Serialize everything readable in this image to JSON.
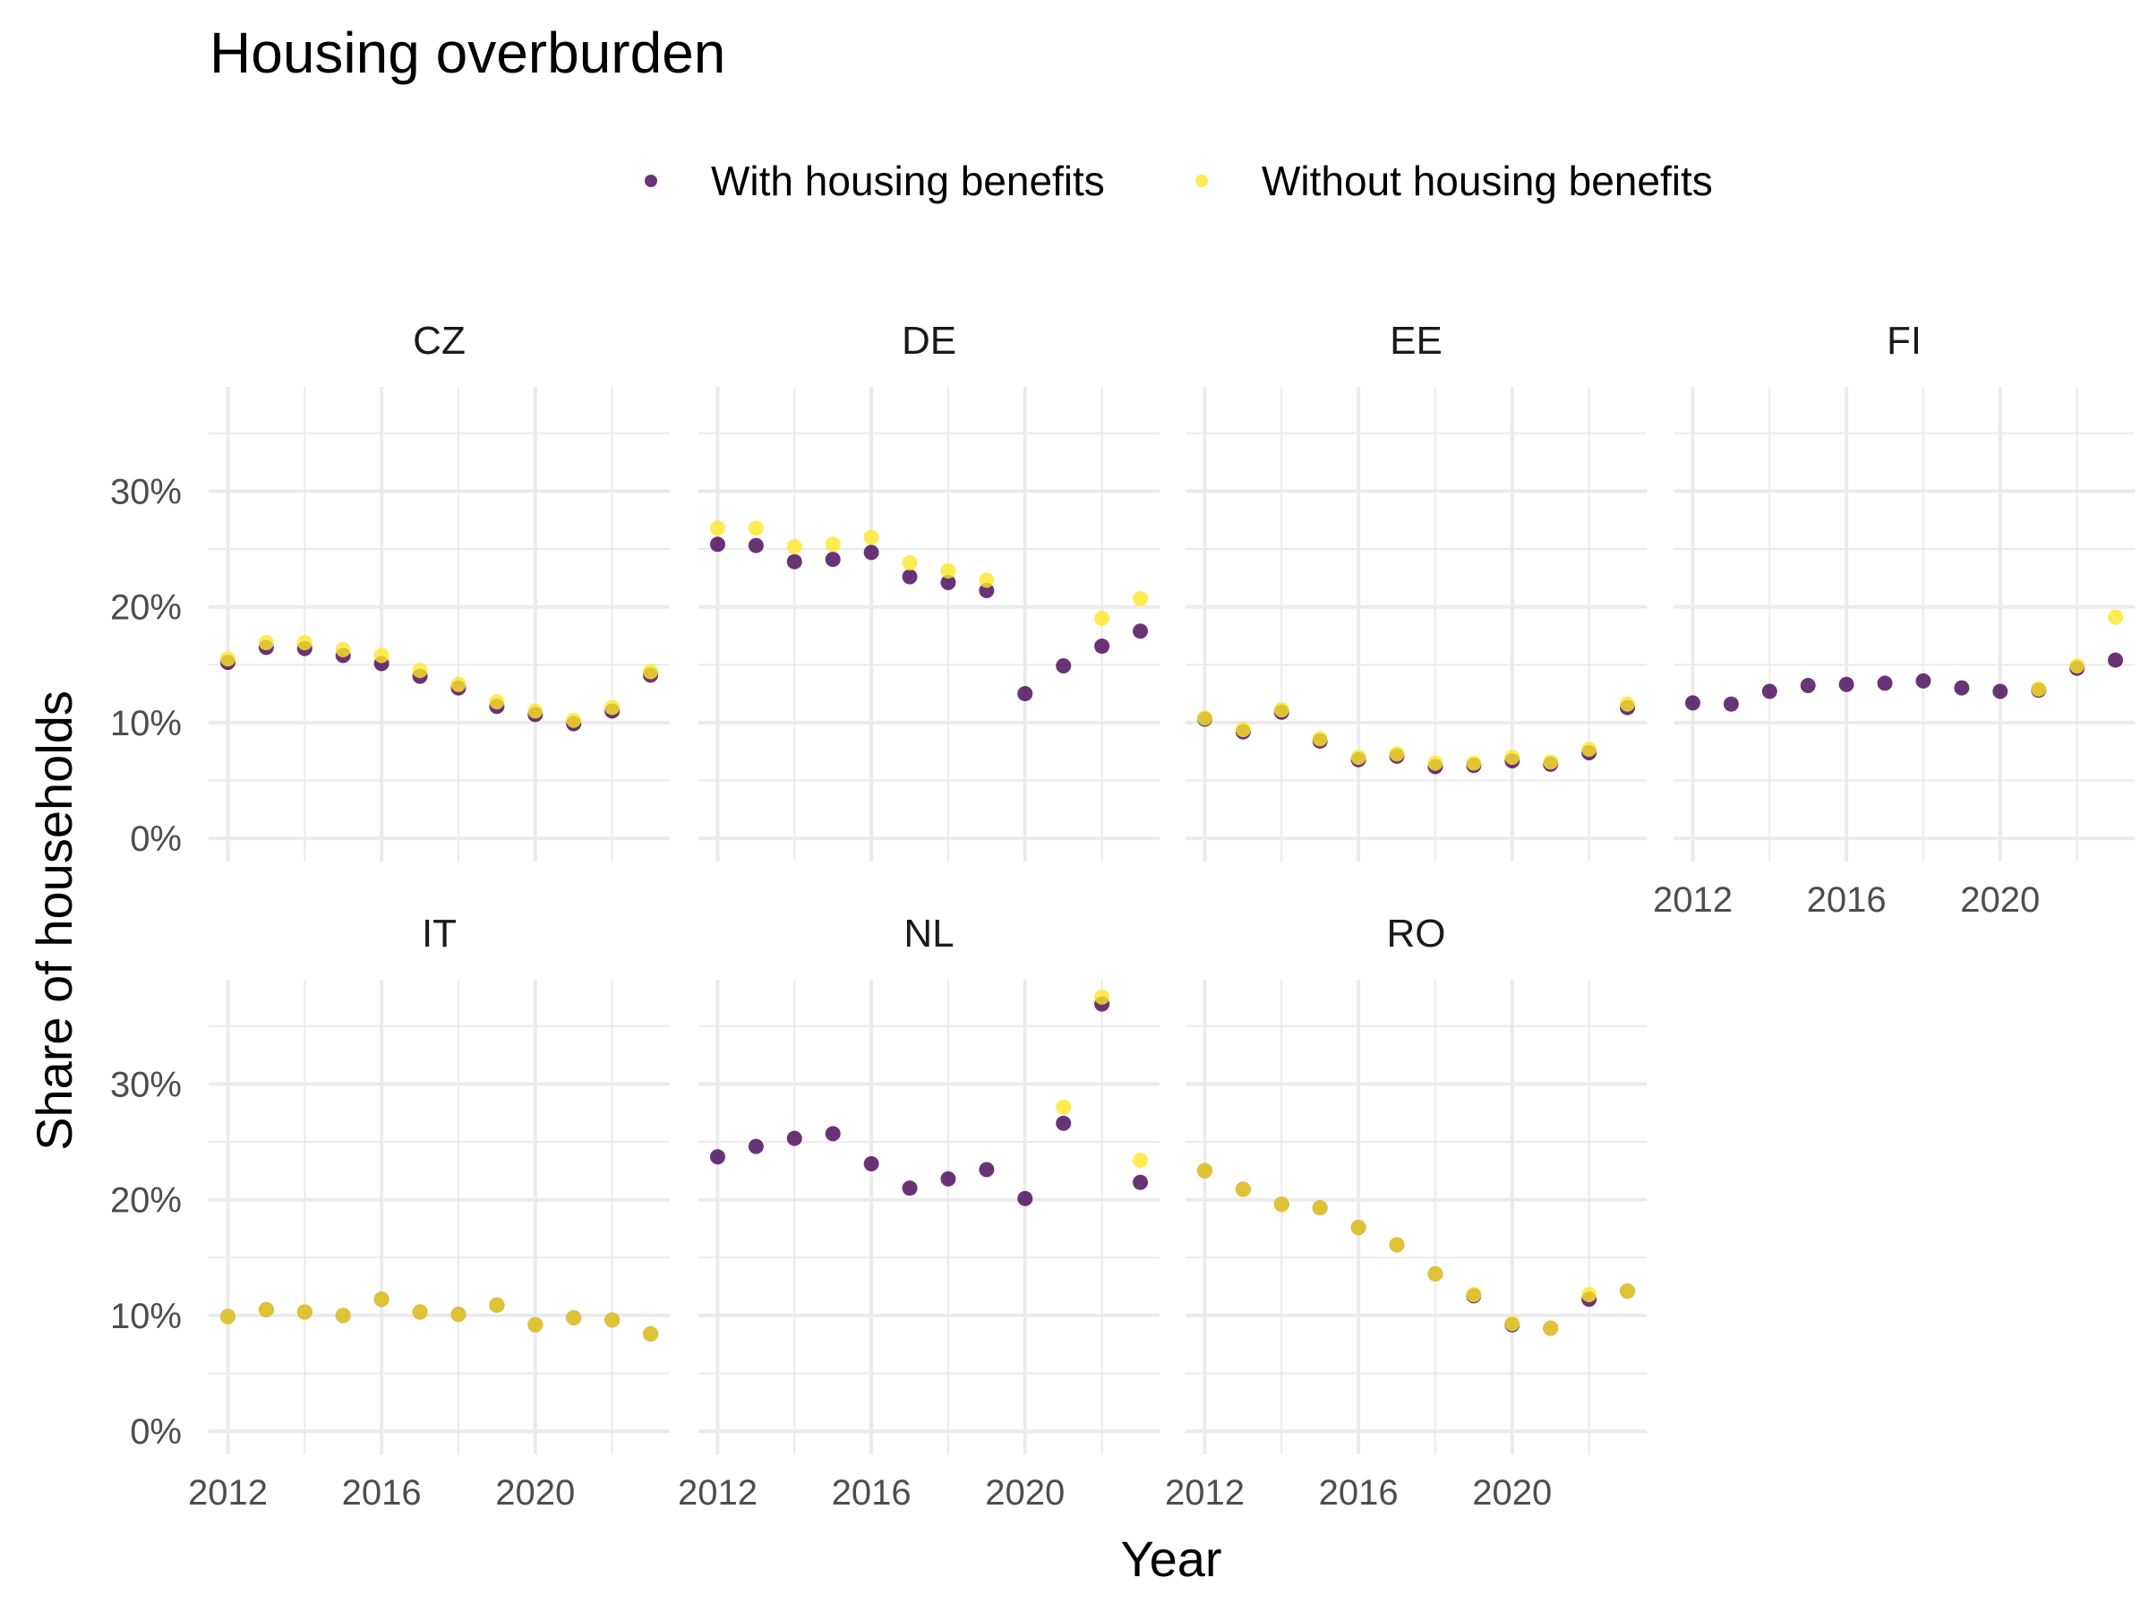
{
  "chart_data": {
    "type": "scatter",
    "title": "Housing overburden",
    "xlabel": "Year",
    "ylabel": "Share of households",
    "legend_position": "top",
    "grid": true,
    "xlim": [
      2011.5,
      2023.5
    ],
    "ylim": [
      -2,
      39
    ],
    "x_ticks": [
      2012,
      2016,
      2020
    ],
    "x_tick_labels": [
      "2012",
      "2016",
      "2020"
    ],
    "y_ticks": [
      0,
      10,
      20,
      30
    ],
    "y_tick_labels": [
      "0%",
      "10%",
      "20%",
      "30%"
    ],
    "series_colors": [
      "#440154",
      "#FDE725"
    ],
    "series": [
      {
        "name": "With housing benefits",
        "color": "#440154"
      },
      {
        "name": "Without housing benefits",
        "color": "#FDE725"
      }
    ],
    "panels": [
      {
        "name": "CZ",
        "years": [
          2012,
          2013,
          2014,
          2015,
          2016,
          2017,
          2018,
          2019,
          2020,
          2021,
          2022,
          2023
        ],
        "with": [
          15.2,
          16.5,
          16.4,
          15.8,
          15.1,
          14.0,
          13.0,
          11.4,
          10.7,
          9.9,
          11.0,
          14.1
        ],
        "without": [
          15.5,
          16.9,
          16.9,
          16.3,
          15.8,
          14.5,
          13.3,
          11.8,
          11.0,
          10.2,
          11.3,
          14.4
        ]
      },
      {
        "name": "DE",
        "years": [
          2012,
          2013,
          2014,
          2015,
          2016,
          2017,
          2018,
          2019,
          2020,
          2021,
          2022,
          2023
        ],
        "with": [
          25.4,
          25.3,
          23.9,
          24.1,
          24.7,
          22.6,
          22.1,
          21.4,
          12.5,
          14.9,
          16.6,
          17.9
        ],
        "without": [
          26.8,
          26.8,
          25.2,
          25.4,
          26.0,
          23.8,
          23.1,
          22.3,
          null,
          null,
          19.0,
          20.7
        ]
      },
      {
        "name": "EE",
        "years": [
          2012,
          2013,
          2014,
          2015,
          2016,
          2017,
          2018,
          2019,
          2020,
          2021,
          2022,
          2023
        ],
        "with": [
          10.3,
          9.2,
          10.9,
          8.4,
          6.8,
          7.1,
          6.2,
          6.3,
          6.7,
          6.4,
          7.4,
          11.3
        ],
        "without": [
          10.4,
          9.4,
          11.1,
          8.6,
          7.0,
          7.3,
          6.5,
          6.5,
          7.0,
          6.6,
          7.7,
          11.6
        ]
      },
      {
        "name": "FI",
        "years": [
          2012,
          2013,
          2014,
          2015,
          2016,
          2017,
          2018,
          2019,
          2020,
          2021,
          2022,
          2023
        ],
        "with": [
          11.7,
          11.6,
          12.7,
          13.2,
          13.3,
          13.4,
          13.6,
          13.0,
          12.7,
          12.8,
          14.7,
          15.4
        ],
        "without": [
          null,
          null,
          null,
          null,
          null,
          null,
          null,
          null,
          null,
          12.9,
          14.9,
          19.1
        ]
      },
      {
        "name": "IT",
        "years": [
          2012,
          2013,
          2014,
          2015,
          2016,
          2017,
          2018,
          2019,
          2020,
          2021,
          2022,
          2023
        ],
        "with": [
          9.9,
          10.5,
          10.3,
          10.0,
          11.4,
          10.3,
          10.1,
          10.9,
          9.2,
          9.8,
          9.6,
          8.4
        ],
        "without": [
          9.9,
          10.5,
          10.3,
          10.0,
          11.4,
          10.3,
          10.1,
          10.9,
          9.2,
          9.8,
          9.6,
          8.4
        ]
      },
      {
        "name": "NL",
        "years": [
          2012,
          2013,
          2014,
          2015,
          2016,
          2017,
          2018,
          2019,
          2020,
          2021,
          2022,
          2023
        ],
        "with": [
          23.7,
          24.6,
          25.3,
          25.7,
          23.1,
          21.0,
          21.8,
          22.6,
          20.1,
          26.6,
          36.9,
          21.5
        ],
        "without": [
          null,
          null,
          null,
          null,
          null,
          null,
          null,
          null,
          null,
          28.0,
          37.5,
          23.4
        ]
      },
      {
        "name": "RO",
        "years": [
          2012,
          2013,
          2014,
          2015,
          2016,
          2017,
          2018,
          2019,
          2020,
          2021,
          2022,
          2023
        ],
        "with": [
          22.5,
          20.9,
          19.6,
          19.3,
          17.6,
          16.1,
          13.6,
          11.7,
          9.2,
          8.9,
          11.4,
          12.1
        ],
        "without": [
          22.5,
          20.9,
          19.6,
          19.3,
          17.6,
          16.1,
          13.6,
          11.8,
          9.3,
          8.9,
          11.8,
          12.1
        ]
      }
    ]
  }
}
